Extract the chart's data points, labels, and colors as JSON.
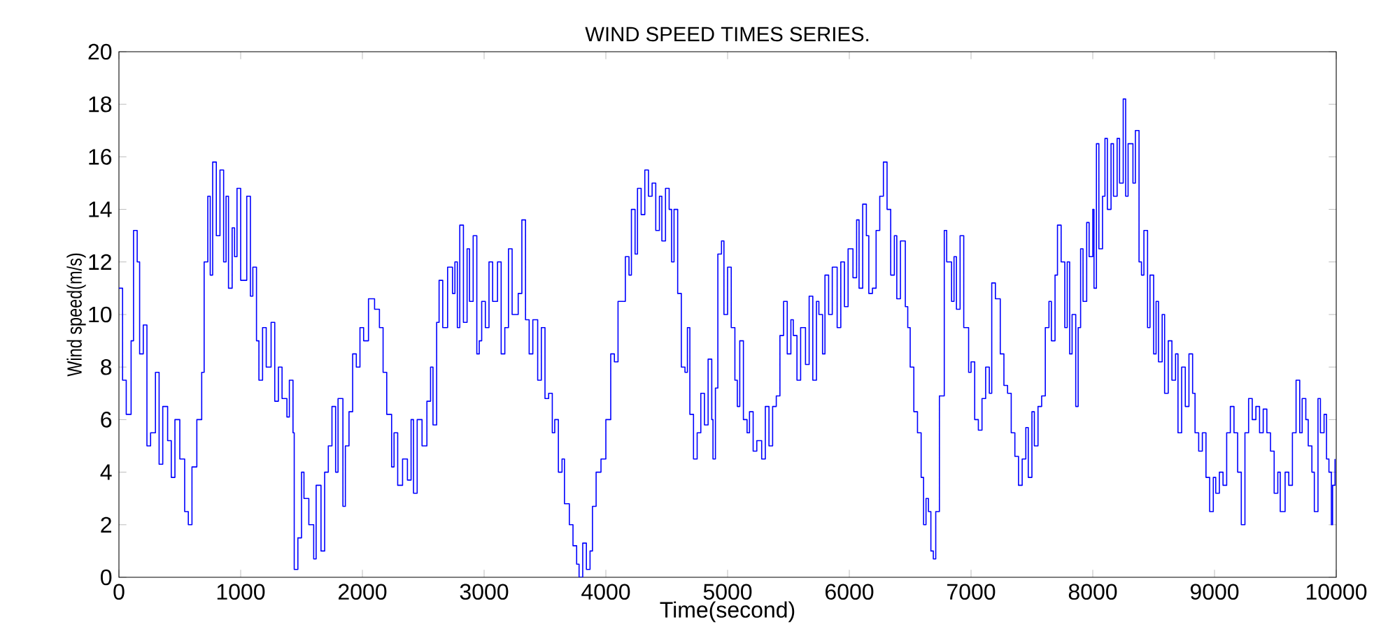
{
  "chart_data": {
    "type": "step",
    "title": "WIND SPEED TIMES SERIES.",
    "xlabel": "Time(second)",
    "ylabel": "Wind speed(m/s)",
    "xlim": [
      0,
      10000
    ],
    "ylim": [
      0,
      20
    ],
    "xticks": [
      0,
      1000,
      2000,
      3000,
      4000,
      5000,
      6000,
      7000,
      8000,
      9000,
      10000
    ],
    "yticks": [
      0,
      2,
      4,
      6,
      8,
      10,
      12,
      14,
      16,
      18,
      20
    ],
    "series": [
      {
        "color": "#0000ff",
        "x": [
          0,
          30,
          60,
          100,
          120,
          150,
          170,
          200,
          230,
          260,
          300,
          330,
          360,
          400,
          430,
          460,
          500,
          540,
          570,
          600,
          640,
          680,
          700,
          730,
          750,
          770,
          800,
          830,
          860,
          880,
          900,
          930,
          950,
          970,
          1000,
          1050,
          1080,
          1100,
          1130,
          1150,
          1180,
          1210,
          1250,
          1280,
          1310,
          1340,
          1380,
          1400,
          1430,
          1440,
          1470,
          1500,
          1520,
          1560,
          1600,
          1620,
          1660,
          1690,
          1720,
          1750,
          1780,
          1800,
          1840,
          1860,
          1890,
          1920,
          1950,
          1980,
          2010,
          2050,
          2100,
          2140,
          2170,
          2200,
          2240,
          2260,
          2290,
          2330,
          2370,
          2400,
          2420,
          2450,
          2490,
          2530,
          2560,
          2580,
          2610,
          2630,
          2660,
          2700,
          2740,
          2760,
          2780,
          2800,
          2830,
          2860,
          2880,
          2910,
          2940,
          2960,
          2980,
          3010,
          3040,
          3070,
          3110,
          3140,
          3170,
          3200,
          3230,
          3280,
          3310,
          3340,
          3370,
          3400,
          3440,
          3470,
          3500,
          3530,
          3560,
          3580,
          3610,
          3640,
          3660,
          3700,
          3730,
          3760,
          3780,
          3810,
          3840,
          3870,
          3890,
          3920,
          3960,
          4000,
          4040,
          4070,
          4100,
          4130,
          4160,
          4190,
          4210,
          4240,
          4260,
          4290,
          4320,
          4350,
          4380,
          4410,
          4440,
          4460,
          4490,
          4520,
          4540,
          4560,
          4590,
          4620,
          4650,
          4670,
          4690,
          4720,
          4750,
          4780,
          4810,
          4840,
          4870,
          4880,
          4900,
          4920,
          4950,
          4970,
          5000,
          5030,
          5060,
          5080,
          5100,
          5130,
          5160,
          5180,
          5210,
          5240,
          5280,
          5310,
          5340,
          5370,
          5400,
          5430,
          5460,
          5490,
          5520,
          5540,
          5570,
          5600,
          5640,
          5670,
          5700,
          5730,
          5750,
          5780,
          5800,
          5830,
          5860,
          5900,
          5930,
          5960,
          5990,
          6030,
          6060,
          6080,
          6110,
          6140,
          6160,
          6190,
          6220,
          6250,
          6280,
          6310,
          6340,
          6370,
          6390,
          6420,
          6460,
          6480,
          6500,
          6530,
          6560,
          6590,
          6610,
          6630,
          6650,
          6670,
          6690,
          6710,
          6740,
          6780,
          6800,
          6840,
          6860,
          6880,
          6910,
          6940,
          6980,
          7000,
          7030,
          7060,
          7090,
          7120,
          7150,
          7170,
          7200,
          7240,
          7270,
          7300,
          7330,
          7360,
          7390,
          7420,
          7450,
          7470,
          7500,
          7520,
          7550,
          7580,
          7610,
          7640,
          7660,
          7690,
          7710,
          7740,
          7770,
          7790,
          7810,
          7830,
          7860,
          7880,
          7900,
          7920,
          7950,
          7970,
          8000,
          8010,
          8030,
          8050,
          8080,
          8100,
          8120,
          8150,
          8170,
          8200,
          8220,
          8250,
          8270,
          8290,
          8310,
          8330,
          8350,
          8380,
          8400,
          8420,
          8450,
          8470,
          8500,
          8520,
          8540,
          8570,
          8590,
          8620,
          8650,
          8680,
          8700,
          8730,
          8760,
          8790,
          8820,
          8840,
          8870,
          8900,
          8930,
          8960,
          8990,
          9010,
          9040,
          9070,
          9100,
          9130,
          9160,
          9190,
          9220,
          9250,
          9280,
          9310,
          9340,
          9370,
          9400,
          9430,
          9460,
          9490,
          9520,
          9540,
          9580,
          9610,
          9640,
          9670,
          9700,
          9720,
          9750,
          9770,
          9800,
          9820,
          9850,
          9870,
          9900,
          9920,
          9940,
          9960,
          9970,
          9990
        ],
        "values": [
          11,
          7.5,
          6.2,
          9,
          13.2,
          12,
          8.5,
          9.6,
          5,
          5.5,
          7.8,
          4.3,
          6.5,
          5.2,
          3.8,
          6,
          4.5,
          2.5,
          2,
          4.2,
          6,
          7.8,
          12,
          14.5,
          11.5,
          15.8,
          13,
          15.5,
          12,
          14.5,
          11,
          13.3,
          12.2,
          14.8,
          11.3,
          14.5,
          10.7,
          11.8,
          9,
          7.5,
          9.5,
          8,
          9.7,
          6.7,
          8,
          6.8,
          6.1,
          7.5,
          5.5,
          0.3,
          1.5,
          4,
          3,
          2,
          0.7,
          3.5,
          1,
          4,
          5,
          6.5,
          4,
          6.8,
          2.7,
          5,
          6.3,
          8.5,
          8,
          9.5,
          9,
          10.6,
          10.2,
          9.5,
          7.8,
          6.2,
          4.2,
          5.5,
          3.5,
          4.5,
          3.7,
          6,
          3.2,
          6,
          5,
          6.7,
          8,
          5.8,
          9.7,
          11.3,
          9.5,
          11.8,
          10.8,
          12,
          9.5,
          13.4,
          9.7,
          12.5,
          10.5,
          13,
          8.5,
          9,
          10.5,
          9.5,
          12,
          10.5,
          12,
          8.5,
          9.5,
          12.5,
          10,
          10.8,
          13.6,
          9.8,
          8.5,
          9.8,
          7.5,
          9.5,
          6.8,
          7,
          5.5,
          6,
          4,
          4.5,
          2.8,
          2,
          1.2,
          0.5,
          0,
          1.3,
          0.3,
          1,
          2.7,
          4,
          4.5,
          6,
          8.5,
          8.2,
          10.5,
          10.5,
          12.2,
          11.5,
          14,
          12.3,
          14.8,
          13.8,
          15.5,
          14.5,
          15,
          13.2,
          14.5,
          12.8,
          14.8,
          14,
          12,
          14,
          10.8,
          8,
          7.8,
          9.5,
          6.2,
          4.5,
          5.5,
          7,
          5.8,
          8.3,
          6,
          4.5,
          7.2,
          12.3,
          12.8,
          10,
          11.8,
          9.5,
          7.5,
          6.5,
          9,
          6,
          5.5,
          6.3,
          4.8,
          5.2,
          4.5,
          6.5,
          5,
          6.5,
          6.9,
          9.2,
          10.5,
          8.5,
          9.8,
          9.2,
          7.5,
          9.5,
          8.1,
          10.7,
          7.5,
          10.5,
          10,
          8.5,
          11.5,
          10,
          11.8,
          9.5,
          12,
          10.3,
          12.5,
          11.4,
          13.6,
          11,
          14.2,
          13,
          10.8,
          11,
          13.2,
          14.5,
          15.8,
          14,
          11.5,
          13,
          10.6,
          12.8,
          10.3,
          9.5,
          8,
          6.3,
          5.5,
          3.8,
          2,
          3,
          2.5,
          1,
          0.7,
          2.5,
          6.9,
          13.2,
          12,
          10.5,
          12.2,
          10.2,
          13,
          9.5,
          7.8,
          8.2,
          6,
          5.6,
          6.8,
          8,
          7,
          11.2,
          10.6,
          8.5,
          7.3,
          7,
          5.5,
          4.6,
          3.5,
          4.5,
          5.7,
          3.8,
          6.3,
          5,
          6.5,
          6.9,
          9.5,
          10.5,
          9,
          11.5,
          13.4,
          12,
          9.5,
          12,
          8.5,
          10,
          6.5,
          9.5,
          12.5,
          10.5,
          13.5,
          12.2,
          14,
          11,
          16.5,
          12.5,
          14.5,
          16.7,
          14,
          16.5,
          14.5,
          16.7,
          15,
          18.2,
          14.5,
          16.5,
          16.5,
          15,
          17,
          12,
          11.5,
          13.2,
          9.5,
          11.5,
          8.5,
          10.5,
          8.2,
          10,
          7,
          9,
          7.5,
          8.5,
          5.5,
          8,
          6.5,
          8.5,
          7,
          5.5,
          4.8,
          5.5,
          3.8,
          2.5,
          3.8,
          3.2,
          4,
          3.5,
          5.5,
          6.5,
          5.5,
          4,
          2,
          5.5,
          6.8,
          6,
          6.5,
          5.5,
          6.4,
          5.5,
          4.8,
          3.2,
          4,
          2.5,
          4,
          3.5,
          5.5,
          7.5,
          5.5,
          6.8,
          6,
          5,
          4,
          2.5,
          6.8,
          5.5,
          6.2,
          4.5,
          4,
          2,
          3.5,
          4.5
        ]
      }
    ],
    "marker": "none"
  }
}
